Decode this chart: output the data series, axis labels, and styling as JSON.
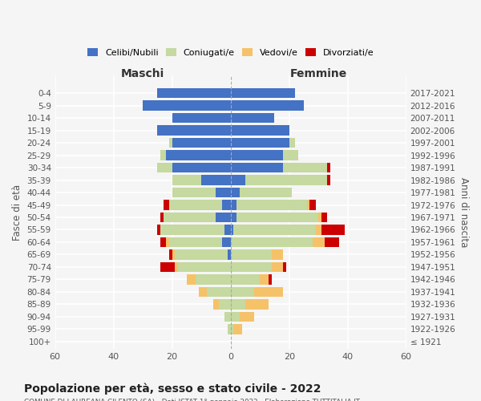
{
  "age_groups": [
    "100+",
    "95-99",
    "90-94",
    "85-89",
    "80-84",
    "75-79",
    "70-74",
    "65-69",
    "60-64",
    "55-59",
    "50-54",
    "45-49",
    "40-44",
    "35-39",
    "30-34",
    "25-29",
    "20-24",
    "15-19",
    "10-14",
    "5-9",
    "0-4"
  ],
  "birth_years": [
    "≤ 1921",
    "1922-1926",
    "1927-1931",
    "1932-1936",
    "1937-1941",
    "1942-1946",
    "1947-1951",
    "1952-1956",
    "1957-1961",
    "1962-1966",
    "1967-1971",
    "1972-1976",
    "1977-1981",
    "1982-1986",
    "1987-1991",
    "1992-1996",
    "1997-2001",
    "2002-2006",
    "2007-2011",
    "2012-2016",
    "2017-2021"
  ],
  "male": {
    "celibi": [
      0,
      0,
      0,
      0,
      0,
      0,
      0,
      1,
      3,
      2,
      5,
      3,
      5,
      10,
      20,
      22,
      20,
      25,
      20,
      30,
      25
    ],
    "coniugati": [
      0,
      1,
      2,
      4,
      8,
      12,
      18,
      18,
      18,
      22,
      18,
      18,
      15,
      10,
      5,
      2,
      1,
      0,
      0,
      0,
      0
    ],
    "vedovi": [
      0,
      0,
      0,
      2,
      3,
      3,
      1,
      1,
      1,
      0,
      0,
      0,
      0,
      0,
      0,
      0,
      0,
      0,
      0,
      0,
      0
    ],
    "divorziati": [
      0,
      0,
      0,
      0,
      0,
      0,
      5,
      1,
      2,
      1,
      1,
      2,
      0,
      0,
      0,
      0,
      0,
      0,
      0,
      0,
      0
    ]
  },
  "female": {
    "nubili": [
      0,
      0,
      0,
      0,
      0,
      0,
      0,
      0,
      0,
      1,
      2,
      2,
      3,
      5,
      18,
      18,
      20,
      20,
      15,
      25,
      22
    ],
    "coniugate": [
      0,
      1,
      3,
      5,
      8,
      10,
      14,
      14,
      28,
      28,
      28,
      24,
      18,
      28,
      15,
      5,
      2,
      0,
      0,
      0,
      0
    ],
    "vedove": [
      0,
      3,
      5,
      8,
      10,
      3,
      4,
      4,
      4,
      2,
      1,
      1,
      0,
      0,
      0,
      0,
      0,
      0,
      0,
      0,
      0
    ],
    "divorziate": [
      0,
      0,
      0,
      0,
      0,
      1,
      1,
      0,
      5,
      8,
      2,
      2,
      0,
      1,
      1,
      0,
      0,
      0,
      0,
      0,
      0
    ]
  },
  "colors": {
    "celibi": "#4472c4",
    "coniugati": "#c5d9a0",
    "vedovi": "#f5c269",
    "divorziati": "#cc0000"
  },
  "xlim": 60,
  "title": "Popolazione per età, sesso e stato civile - 2022",
  "xlabel_left": "Maschi",
  "xlabel_right": "Femmine",
  "ylabel_left": "Fasce di età",
  "ylabel_right": "Anni di nascita",
  "legend_labels": [
    "Celibi/Nubili",
    "Coniugati/e",
    "Vedovi/e",
    "Divorziati/e"
  ],
  "legend_color_keys": [
    "celibi",
    "coniugati",
    "vedovi",
    "divorziati"
  ],
  "bg_color": "#f5f5f5",
  "grid_color": "#ffffff"
}
